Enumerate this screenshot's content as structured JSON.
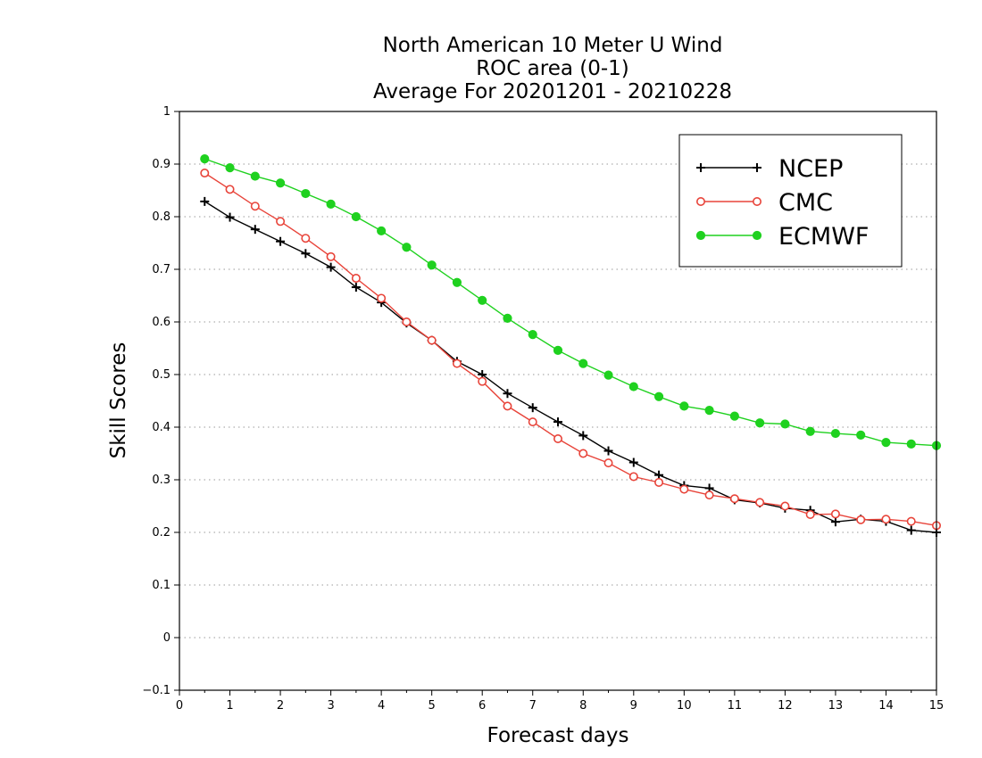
{
  "chart_data": {
    "type": "line",
    "title": [
      "North American 10 Meter U Wind",
      "ROC area (0-1)",
      "Average For 20201201 - 20210228"
    ],
    "xlabel": "Forecast days",
    "ylabel": "Skill Scores",
    "xlim": [
      0,
      15
    ],
    "ylim": [
      -0.1,
      1
    ],
    "xticks": [
      0,
      1,
      2,
      3,
      4,
      5,
      6,
      7,
      8,
      9,
      10,
      11,
      12,
      13,
      14,
      15
    ],
    "yticks": [
      -0.1,
      0,
      0.1,
      0.2,
      0.3,
      0.4,
      0.5,
      0.6,
      0.7,
      0.8,
      0.9,
      1
    ],
    "ytick_labels": [
      "−0.1",
      "0",
      "0.1",
      "0.2",
      "0.3",
      "0.4",
      "0.5",
      "0.6",
      "0.7",
      "0.8",
      "0.9",
      "1"
    ],
    "grid": true,
    "legend_position": "top-right",
    "x": [
      0.5,
      1,
      1.5,
      2,
      2.5,
      3,
      3.5,
      4,
      4.5,
      5,
      5.5,
      6,
      6.5,
      7,
      7.5,
      8,
      8.5,
      9,
      9.5,
      10,
      10.5,
      11,
      11.5,
      12,
      12.5,
      13,
      13.5,
      14,
      14.5,
      15
    ],
    "series": [
      {
        "name": "NCEP",
        "color": "#000000",
        "marker": "plus",
        "values": [
          0.829,
          0.799,
          0.776,
          0.753,
          0.73,
          0.704,
          0.666,
          0.637,
          0.598,
          0.565,
          0.525,
          0.5,
          0.464,
          0.437,
          0.41,
          0.384,
          0.355,
          0.333,
          0.309,
          0.289,
          0.284,
          0.262,
          0.256,
          0.246,
          0.242,
          0.22,
          0.225,
          0.221,
          0.204,
          0.2
        ]
      },
      {
        "name": "CMC",
        "color": "#e8443a",
        "marker": "open-circle",
        "values": [
          0.883,
          0.852,
          0.82,
          0.791,
          0.759,
          0.724,
          0.683,
          0.645,
          0.6,
          0.565,
          0.521,
          0.487,
          0.44,
          0.41,
          0.378,
          0.35,
          0.332,
          0.306,
          0.295,
          0.282,
          0.271,
          0.264,
          0.257,
          0.25,
          0.234,
          0.235,
          0.224,
          0.225,
          0.221,
          0.213
        ]
      },
      {
        "name": "ECMWF",
        "color": "#1fd11f",
        "marker": "filled-circle",
        "values": [
          0.91,
          0.893,
          0.877,
          0.864,
          0.844,
          0.824,
          0.8,
          0.773,
          0.742,
          0.708,
          0.675,
          0.641,
          0.607,
          0.576,
          0.546,
          0.521,
          0.499,
          0.477,
          0.458,
          0.44,
          0.432,
          0.421,
          0.408,
          0.406,
          0.392,
          0.388,
          0.385,
          0.371,
          0.368,
          0.365
        ]
      }
    ]
  }
}
